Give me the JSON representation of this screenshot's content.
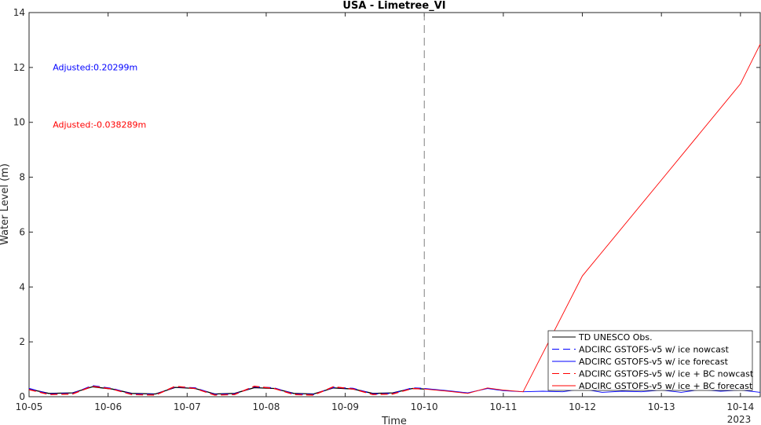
{
  "chart_data": {
    "type": "line",
    "title": "USA - Limetree_VI",
    "xlabel": "Time",
    "ylabel": "Water Level (m)",
    "year_label": "2023",
    "ylim": [
      0,
      14
    ],
    "yticks": [
      0,
      2,
      4,
      6,
      8,
      10,
      12,
      14
    ],
    "xlim_days": [
      0,
      9.25
    ],
    "x_tick_labels": [
      "10-05",
      "10-06",
      "10-07",
      "10-08",
      "10-09",
      "10-10",
      "10-11",
      "10-12",
      "10-13",
      "10-14"
    ],
    "nowcast_forecast_divider_day": 5.0,
    "annotations": [
      {
        "text": "Adjusted:0.20299m",
        "color": "#0000ff",
        "at_day": 0.3,
        "at_value": 11.9
      },
      {
        "text": "Adjusted:-0.038289m",
        "color": "#ff0000",
        "at_day": 0.3,
        "at_value": 9.8
      }
    ],
    "series": [
      {
        "name": "TD UNESCO Obs.",
        "color": "#000000",
        "dash": "solid",
        "x_days": [
          0,
          0.25,
          0.55,
          0.8,
          1.05,
          1.3,
          1.6,
          1.85,
          2.1,
          2.35,
          2.6,
          2.85,
          3.1,
          3.35,
          3.6,
          3.85,
          4.1,
          4.35,
          4.6,
          4.85,
          5.0
        ],
        "values": [
          0.28,
          0.12,
          0.14,
          0.36,
          0.28,
          0.12,
          0.1,
          0.34,
          0.3,
          0.1,
          0.12,
          0.33,
          0.3,
          0.12,
          0.1,
          0.32,
          0.28,
          0.12,
          0.14,
          0.3,
          0.28
        ]
      },
      {
        "name": "ADCIRC GSTOFS-v5 w/ ice nowcast",
        "color": "#0000ff",
        "dash": "dashed",
        "x_days": [
          0,
          0.25,
          0.55,
          0.8,
          1.05,
          1.3,
          1.6,
          1.85,
          2.1,
          2.35,
          2.6,
          2.85,
          3.1,
          3.35,
          3.6,
          3.85,
          4.1,
          4.35,
          4.6,
          4.85,
          5.0
        ],
        "values": [
          0.3,
          0.1,
          0.12,
          0.4,
          0.3,
          0.1,
          0.08,
          0.36,
          0.32,
          0.08,
          0.1,
          0.36,
          0.32,
          0.1,
          0.08,
          0.34,
          0.3,
          0.1,
          0.12,
          0.32,
          0.3
        ]
      },
      {
        "name": "ADCIRC GSTOFS-v5 w/ ice forecast",
        "color": "#0000ff",
        "dash": "solid",
        "x_days": [
          5.0,
          5.3,
          5.55,
          5.8,
          6.0,
          6.25,
          6.5,
          6.75,
          7.0,
          7.25,
          7.5,
          7.75,
          8.0,
          8.25,
          8.5,
          8.75,
          9.0,
          9.25
        ],
        "values": [
          0.3,
          0.22,
          0.14,
          0.3,
          0.22,
          0.18,
          0.2,
          0.18,
          0.28,
          0.16,
          0.2,
          0.18,
          0.24,
          0.16,
          0.26,
          0.2,
          0.24,
          0.16
        ]
      },
      {
        "name": "ADCIRC GSTOFS-v5 w/ ice + BC nowcast",
        "color": "#ff0000",
        "dash": "dashed",
        "x_days": [
          0,
          0.25,
          0.55,
          0.8,
          1.05,
          1.3,
          1.6,
          1.85,
          2.1,
          2.35,
          2.6,
          2.85,
          3.1,
          3.35,
          3.6,
          3.85,
          4.1,
          4.35,
          4.6,
          4.85,
          5.0
        ],
        "values": [
          0.26,
          0.08,
          0.1,
          0.38,
          0.28,
          0.08,
          0.06,
          0.38,
          0.3,
          0.06,
          0.08,
          0.38,
          0.3,
          0.08,
          0.06,
          0.36,
          0.28,
          0.08,
          0.1,
          0.3,
          0.28
        ]
      },
      {
        "name": "ADCIRC GSTOFS-v5 w/ ice + BC forecast",
        "color": "#ff0000",
        "dash": "solid",
        "x_days": [
          5.0,
          5.3,
          5.55,
          5.8,
          6.0,
          6.25,
          7.0,
          8.0,
          9.0,
          9.25
        ],
        "values": [
          0.28,
          0.2,
          0.12,
          0.32,
          0.24,
          0.18,
          4.4,
          7.9,
          11.4,
          12.85
        ]
      }
    ]
  }
}
